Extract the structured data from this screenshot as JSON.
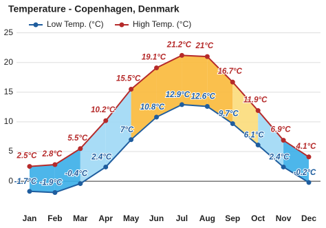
{
  "chart_data": {
    "type": "line",
    "title": "Temperature - Copenhagen, Denmark",
    "categories": [
      "Jan",
      "Feb",
      "Mar",
      "Apr",
      "May",
      "Jun",
      "Jul",
      "Aug",
      "Sep",
      "Oct",
      "Nov",
      "Dec"
    ],
    "series": [
      {
        "name": "Low Temp. (°C)",
        "color": "#1f5d9e",
        "values": [
          -1.7,
          -1.9,
          -0.4,
          2.4,
          7,
          10.8,
          12.9,
          12.6,
          9.7,
          6.1,
          2.4,
          -0.2
        ],
        "value_labels": [
          "-1.7°C",
          "-1.9°C",
          "-0.4°C",
          "2.4°C",
          "7°C",
          "10.8°C",
          "12.9°C",
          "12.6°C",
          "9.7°C",
          "6.1°C",
          "2.4°C",
          "-0.2°C"
        ]
      },
      {
        "name": "High Temp. (°C)",
        "color": "#b52a2a",
        "values": [
          2.5,
          2.8,
          5.5,
          10.2,
          15.5,
          19.1,
          21.2,
          21,
          16.7,
          11.9,
          6.9,
          4.1
        ],
        "value_labels": [
          "2.5°C",
          "2.8°C",
          "5.5°C",
          "10.2°C",
          "15.5°C",
          "19.1°C",
          "21.2°C",
          "21°C",
          "16.7°C",
          "11.9°C",
          "6.9°C",
          "4.1°C"
        ]
      }
    ],
    "ylim": [
      -3,
      26
    ],
    "yticks": [
      0,
      5,
      10,
      15,
      20,
      25
    ],
    "grid": true
  }
}
